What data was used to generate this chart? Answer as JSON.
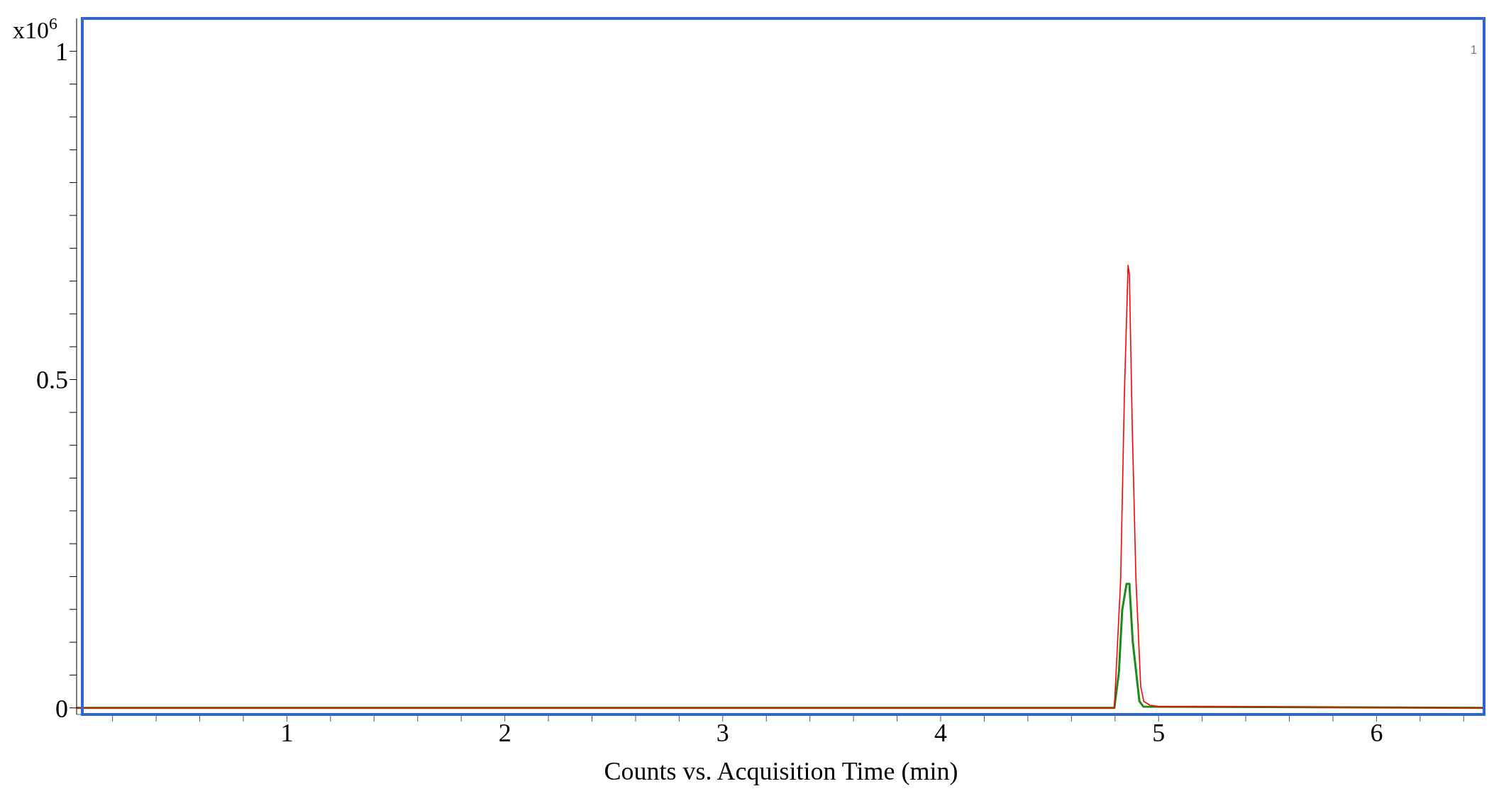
{
  "chart_data": {
    "type": "line",
    "xlabel": "Counts vs. Acquisition Time (min)",
    "ylabel": "x10$^{6}$",
    "annotations": [
      "1"
    ],
    "xlim": [
      0.035,
      6.5
    ],
    "ylim": [
      -0.01,
      1.05
    ],
    "xticks": [
      {
        "value": 0.2,
        "label": null
      },
      {
        "value": 0.4,
        "label": null
      },
      {
        "value": 0.6,
        "label": null
      },
      {
        "value": 0.8,
        "label": null
      },
      1,
      {
        "value": 1.2,
        "label": null
      },
      {
        "value": 1.4,
        "label": null
      },
      {
        "value": 1.6,
        "label": null
      },
      {
        "value": 1.8,
        "label": null
      },
      2,
      {
        "value": 2.2,
        "label": null
      },
      {
        "value": 2.4,
        "label": null
      },
      {
        "value": 2.6,
        "label": null
      },
      {
        "value": 2.8,
        "label": null
      },
      3,
      {
        "value": 3.2,
        "label": null
      },
      {
        "value": 3.4,
        "label": null
      },
      {
        "value": 3.6,
        "label": null
      },
      {
        "value": 3.8,
        "label": null
      },
      4,
      {
        "value": 4.2,
        "label": null
      },
      {
        "value": 4.4,
        "label": null
      },
      {
        "value": 4.6,
        "label": null
      },
      {
        "value": 4.8,
        "label": null
      },
      5,
      {
        "value": 5.2,
        "label": null
      },
      {
        "value": 5.4,
        "label": null
      },
      {
        "value": 5.6,
        "label": null
      },
      {
        "value": 5.8,
        "label": null
      },
      6,
      {
        "value": 6.2,
        "label": null
      },
      {
        "value": 6.4,
        "label": null
      }
    ],
    "yticks": [
      0,
      {
        "value": 0.05,
        "label": null
      },
      {
        "value": 0.1,
        "label": null
      },
      {
        "value": 0.15,
        "label": null
      },
      {
        "value": 0.2,
        "label": null
      },
      {
        "value": 0.25,
        "label": null
      },
      {
        "value": 0.3,
        "label": null
      },
      {
        "value": 0.35,
        "label": null
      },
      {
        "value": 0.4,
        "label": null
      },
      {
        "value": 0.45,
        "label": null
      },
      0.5,
      {
        "value": 0.55,
        "label": null
      },
      {
        "value": 0.6,
        "label": null
      },
      {
        "value": 0.65,
        "label": null
      },
      {
        "value": 0.7,
        "label": null
      },
      {
        "value": 0.75,
        "label": null
      },
      {
        "value": 0.8,
        "label": null
      },
      {
        "value": 0.85,
        "label": null
      },
      {
        "value": 0.9,
        "label": null
      },
      {
        "value": 0.95,
        "label": null
      },
      1
    ],
    "grid": false,
    "legend": false,
    "marker": "none",
    "line_style": "solid",
    "series": [
      {
        "color": "#ff0000",
        "x": [
          0.035,
          4.797,
          4.826,
          4.843,
          4.86,
          4.866,
          4.879,
          4.896,
          4.918,
          4.932,
          4.96,
          5.0,
          6.5
        ],
        "values": [
          0,
          0,
          0.196,
          0.478,
          0.674,
          0.66,
          0.43,
          0.196,
          0.032,
          0.01,
          0.004,
          0.002,
          0
        ]
      },
      {
        "color": "#1a8c1a",
        "x": [
          0.035,
          4.797,
          4.818,
          4.833,
          4.853,
          4.866,
          4.881,
          4.912,
          4.93,
          6.5
        ],
        "values": [
          0,
          0,
          0.055,
          0.149,
          0.189,
          0.189,
          0.102,
          0.01,
          0.002,
          0
        ]
      }
    ]
  }
}
